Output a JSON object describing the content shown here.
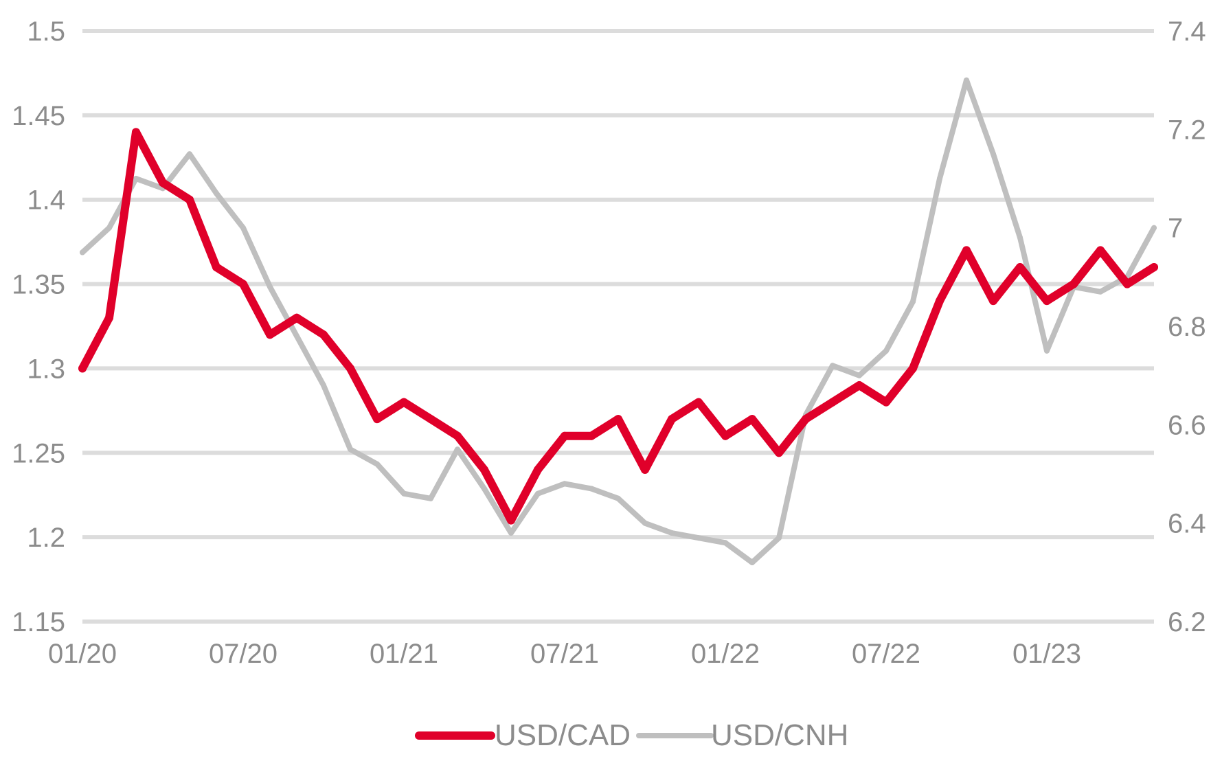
{
  "chart_data": {
    "type": "line",
    "title": "",
    "xlabel": "",
    "ylabel": "",
    "grid": true,
    "legend_position": "bottom-center",
    "x_tick_labels": [
      "01/20",
      "07/20",
      "01/21",
      "07/21",
      "01/22",
      "07/22",
      "01/23"
    ],
    "xlim": [
      "2020-01",
      "2023-05"
    ],
    "y_left": {
      "lim": [
        1.15,
        1.5
      ],
      "ticks": [
        1.15,
        1.2,
        1.25,
        1.3,
        1.35,
        1.4,
        1.45,
        1.5
      ],
      "tick_labels": [
        "1.15",
        "1.2",
        "1.25",
        "1.3",
        "1.35",
        "1.4",
        "1.45",
        "1.5"
      ]
    },
    "y_right": {
      "lim": [
        6.2,
        7.4
      ],
      "ticks": [
        6.2,
        6.4,
        6.6,
        6.8,
        7.0,
        7.2,
        7.4
      ],
      "tick_labels": [
        "6.2",
        "6.4",
        "6.6",
        "6.8",
        "7",
        "7.2",
        "7.4"
      ]
    },
    "series": [
      {
        "name": "USD/CAD",
        "axis": "left",
        "color": "#e0002a",
        "x": [
          "2020-01",
          "2020-02",
          "2020-03",
          "2020-04",
          "2020-05",
          "2020-06",
          "2020-07",
          "2020-08",
          "2020-09",
          "2020-10",
          "2020-11",
          "2020-12",
          "2021-01",
          "2021-02",
          "2021-03",
          "2021-04",
          "2021-05",
          "2021-06",
          "2021-07",
          "2021-08",
          "2021-09",
          "2021-10",
          "2021-11",
          "2021-12",
          "2022-01",
          "2022-02",
          "2022-03",
          "2022-04",
          "2022-05",
          "2022-06",
          "2022-07",
          "2022-08",
          "2022-09",
          "2022-10",
          "2022-11",
          "2022-12",
          "2023-01",
          "2023-02",
          "2023-03",
          "2023-04",
          "2023-05"
        ],
        "values": [
          1.3,
          1.33,
          1.44,
          1.41,
          1.4,
          1.36,
          1.35,
          1.32,
          1.33,
          1.32,
          1.3,
          1.27,
          1.28,
          1.27,
          1.26,
          1.24,
          1.21,
          1.24,
          1.26,
          1.26,
          1.27,
          1.24,
          1.27,
          1.28,
          1.26,
          1.27,
          1.25,
          1.27,
          1.28,
          1.29,
          1.28,
          1.3,
          1.34,
          1.37,
          1.34,
          1.36,
          1.34,
          1.35,
          1.37,
          1.35,
          1.36
        ]
      },
      {
        "name": "USD/CNH",
        "axis": "right",
        "color": "#bfbfbf",
        "x": [
          "2020-01",
          "2020-02",
          "2020-03",
          "2020-04",
          "2020-05",
          "2020-06",
          "2020-07",
          "2020-08",
          "2020-09",
          "2020-10",
          "2020-11",
          "2020-12",
          "2021-01",
          "2021-02",
          "2021-03",
          "2021-04",
          "2021-05",
          "2021-06",
          "2021-07",
          "2021-08",
          "2021-09",
          "2021-10",
          "2021-11",
          "2021-12",
          "2022-01",
          "2022-02",
          "2022-03",
          "2022-04",
          "2022-05",
          "2022-06",
          "2022-07",
          "2022-08",
          "2022-09",
          "2022-10",
          "2022-11",
          "2022-12",
          "2023-01",
          "2023-02",
          "2023-03",
          "2023-04",
          "2023-05"
        ],
        "values": [
          6.95,
          7.0,
          7.1,
          7.08,
          7.15,
          7.07,
          7.0,
          6.88,
          6.78,
          6.68,
          6.55,
          6.52,
          6.46,
          6.45,
          6.55,
          6.47,
          6.38,
          6.46,
          6.48,
          6.47,
          6.45,
          6.4,
          6.38,
          6.37,
          6.36,
          6.32,
          6.37,
          6.62,
          6.72,
          6.7,
          6.75,
          6.85,
          7.1,
          7.3,
          7.15,
          6.98,
          6.75,
          6.88,
          6.87,
          6.9,
          7.0
        ]
      }
    ]
  }
}
